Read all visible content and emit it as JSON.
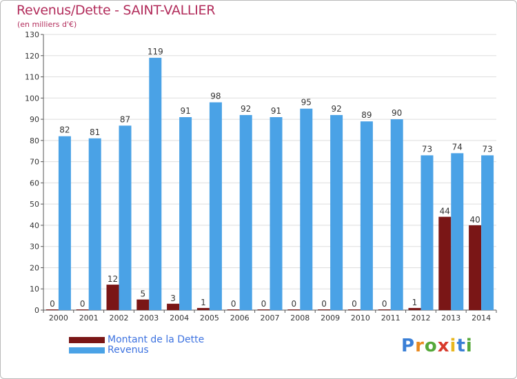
{
  "header": {
    "title": "Revenus/Dette - SAINT-VALLIER",
    "subtitle": "(en milliers d'€)"
  },
  "logo": {
    "text": "Proxiti",
    "letters": [
      "P",
      "r",
      "o",
      "x",
      "i",
      "t",
      "i"
    ],
    "colors": [
      "#3a7fd6",
      "#e8891f",
      "#55a83a",
      "#d83a2c",
      "#e8b71f",
      "#3a7fd6",
      "#55a83a"
    ]
  },
  "colors": {
    "debt": "#7a1616",
    "revenue": "#4aa2e6",
    "axis": "#555555",
    "grid": "#dddddd",
    "title": "#b22c5b",
    "legend_text": "#3c72e0"
  },
  "chart_data": {
    "type": "bar",
    "title": "Revenus/Dette - SAINT-VALLIER",
    "subtitle": "(en milliers d'€)",
    "categories": [
      "2000",
      "2001",
      "2002",
      "2003",
      "2004",
      "2005",
      "2006",
      "2007",
      "2008",
      "2009",
      "2010",
      "2011",
      "2012",
      "2013",
      "2014"
    ],
    "series": [
      {
        "name": "Montant de la Dette",
        "values": [
          0,
          0,
          12,
          5,
          3,
          1,
          0,
          0,
          0,
          0,
          0,
          0,
          1,
          44,
          40
        ]
      },
      {
        "name": "Revenus",
        "values": [
          82,
          81,
          87,
          119,
          91,
          98,
          92,
          91,
          95,
          92,
          89,
          90,
          73,
          74,
          73
        ]
      }
    ],
    "ylim": [
      0,
      130
    ],
    "yticks": [
      0,
      10,
      20,
      30,
      40,
      50,
      60,
      70,
      80,
      90,
      100,
      110,
      120,
      130
    ],
    "grid": true,
    "legend_position": "bottom-left"
  }
}
